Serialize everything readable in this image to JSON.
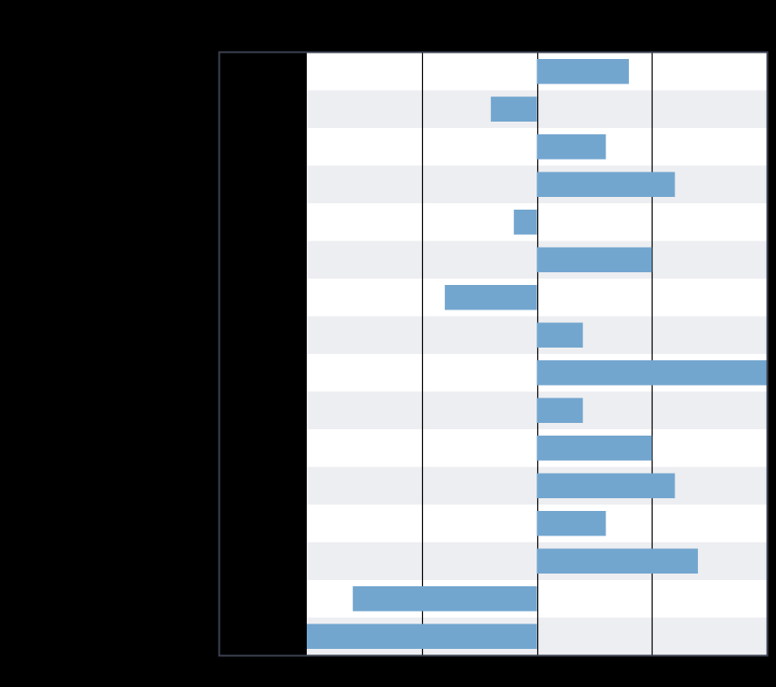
{
  "chart_data": {
    "type": "bar",
    "orientation": "horizontal",
    "title": "",
    "xlabel": "",
    "ylabel": "",
    "categories": [
      "",
      "",
      "",
      "",
      "",
      "",
      "",
      "",
      "",
      "",
      "",
      "",
      "",
      "",
      "",
      ""
    ],
    "values": [
      0.8,
      -0.4,
      0.6,
      1.2,
      -0.2,
      1.0,
      -0.8,
      0.4,
      2.0,
      0.4,
      1.0,
      1.2,
      0.6,
      1.4,
      -1.6,
      -2.0
    ],
    "xlim": [
      -2.0,
      2.0
    ],
    "x_gridlines": [
      -1.0,
      0.0,
      1.0
    ],
    "grid": true,
    "legend": "none",
    "colors": {
      "background": "#000000",
      "plot_band_light": "#ffffff",
      "plot_band_alt": "#edeef1",
      "bar": "#73a6cf",
      "gridline": "#000000",
      "frame": "#3b4150"
    }
  }
}
